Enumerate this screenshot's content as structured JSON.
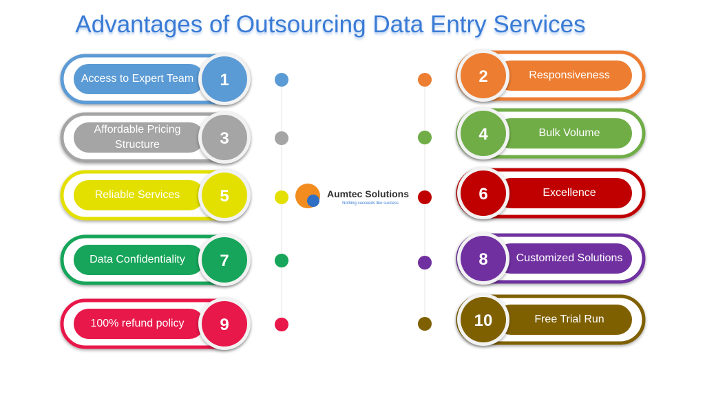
{
  "title": "Advantages of Outsourcing Data Entry Services",
  "logo": {
    "name": "Aumtec Solutions",
    "tagline": "Nothing succeeds like success"
  },
  "items": [
    {
      "number": "1",
      "label": "Access to Expert Team",
      "side": "left",
      "row": 0,
      "color": "#5b9bd5"
    },
    {
      "number": "2",
      "label": "Responsiveness",
      "side": "right",
      "row": 0,
      "color": "#ed7d31"
    },
    {
      "number": "3",
      "label": "Affordable Pricing Structure",
      "side": "left",
      "row": 1,
      "color": "#a5a5a5"
    },
    {
      "number": "4",
      "label": "Bulk Volume",
      "side": "right",
      "row": 1,
      "color": "#70ad47"
    },
    {
      "number": "5",
      "label": "Reliable Services",
      "side": "left",
      "row": 2,
      "color": "#e3e000"
    },
    {
      "number": "6",
      "label": "Excellence",
      "side": "right",
      "row": 2,
      "color": "#c00000"
    },
    {
      "number": "7",
      "label": "Data Confidentiality",
      "side": "left",
      "row": 3,
      "color": "#16a55a"
    },
    {
      "number": "8",
      "label": "Customized Solutions",
      "side": "right",
      "row": 3,
      "color": "#7030a0"
    },
    {
      "number": "9",
      "label": "100% refund policy",
      "side": "left",
      "row": 4,
      "color": "#e8184a"
    },
    {
      "number": "10",
      "label": "Free Trial Run",
      "side": "right",
      "row": 4,
      "color": "#7f6000"
    }
  ]
}
